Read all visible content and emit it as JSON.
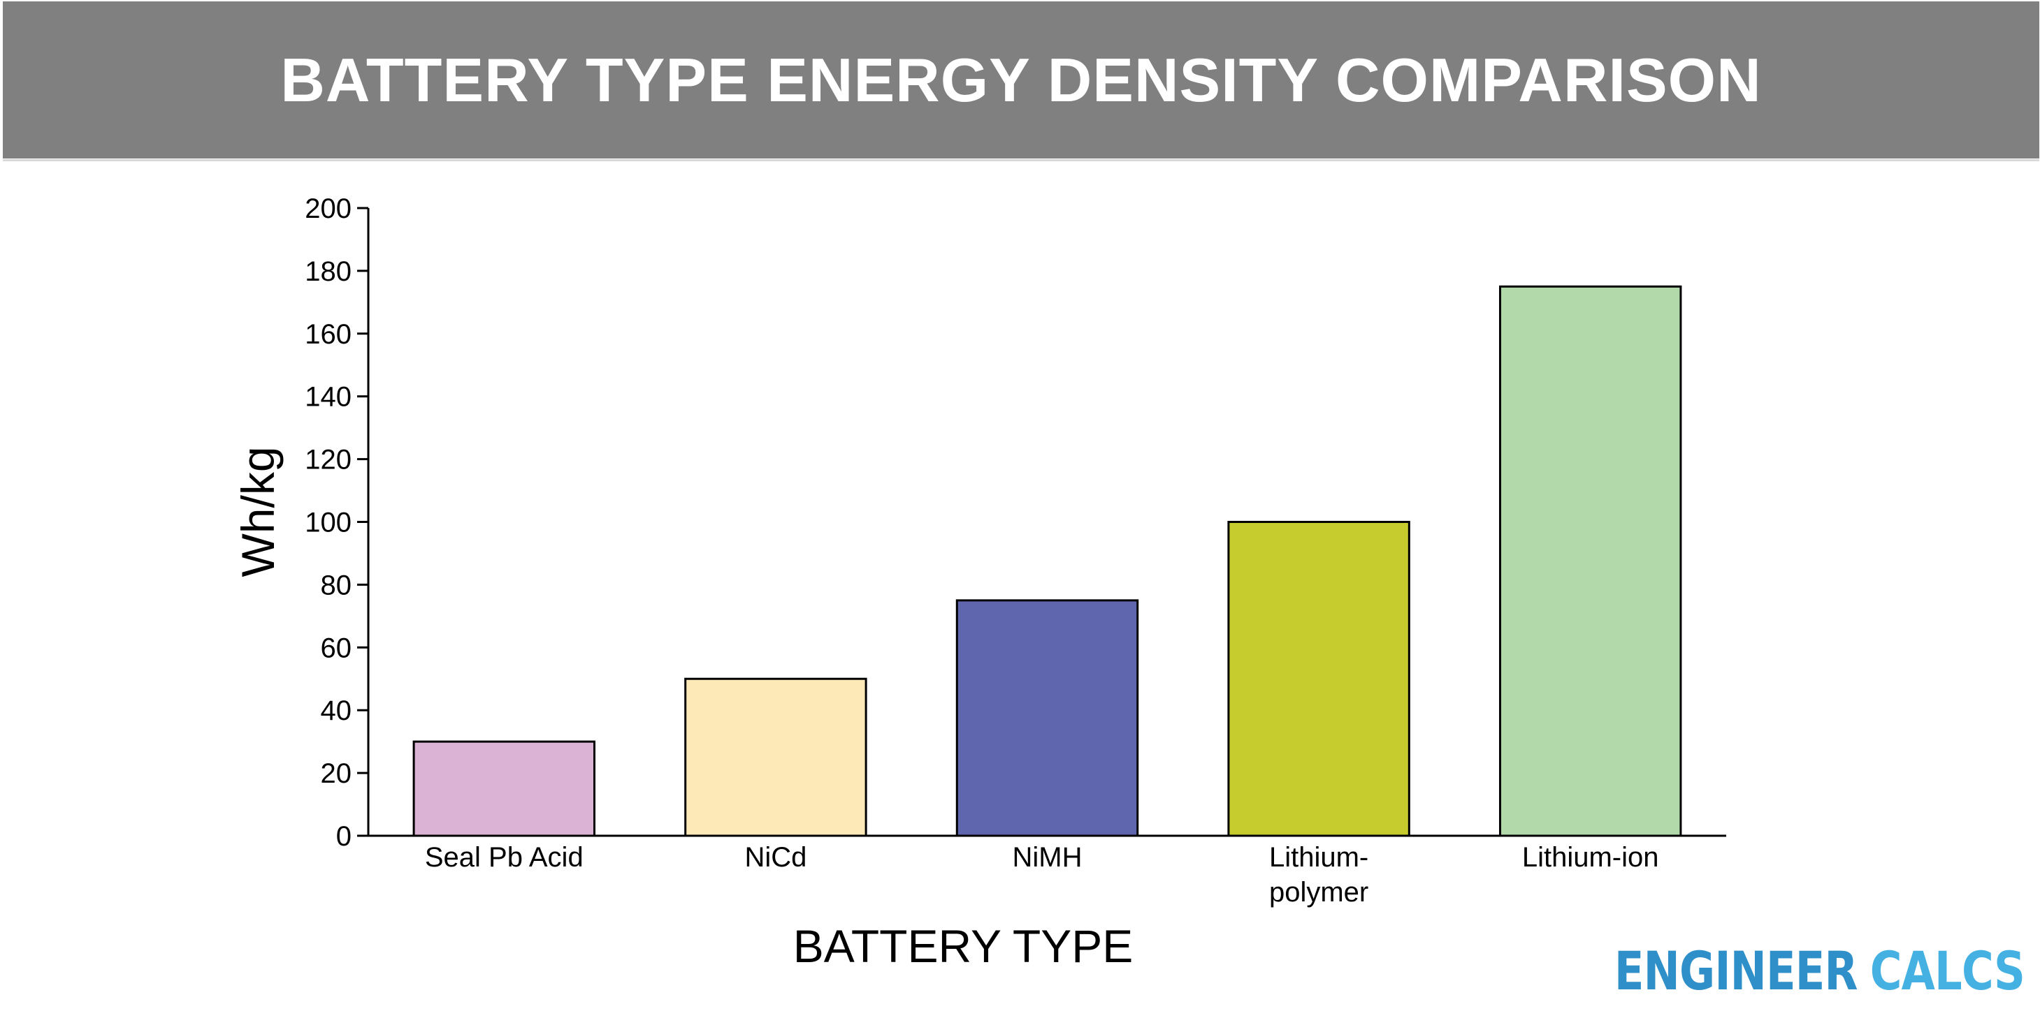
{
  "header": {
    "title": "BATTERY TYPE ENERGY DENSITY COMPARISON"
  },
  "chart_data": {
    "type": "bar",
    "title": "BATTERY TYPE ENERGY DENSITY COMPARISON",
    "xlabel": "BATTERY TYPE",
    "ylabel": "Wh/kg",
    "categories": [
      [
        "Seal Pb Acid"
      ],
      [
        "NiCd"
      ],
      [
        "NiMH"
      ],
      [
        "Lithium-",
        "polymer"
      ],
      [
        "Lithium-ion"
      ]
    ],
    "values": [
      30,
      50,
      75,
      100,
      175
    ],
    "colors": [
      "#dbb3d5",
      "#fde8b8",
      "#6066ae",
      "#c6cc2e",
      "#b2d9aa"
    ],
    "ylim": [
      0,
      200
    ],
    "yticks": [
      0,
      20,
      40,
      60,
      80,
      100,
      120,
      140,
      160,
      180,
      200
    ],
    "grid": false,
    "legend": "none"
  },
  "branding": {
    "word1": "ENGINEER",
    "word2": "CALCS"
  }
}
